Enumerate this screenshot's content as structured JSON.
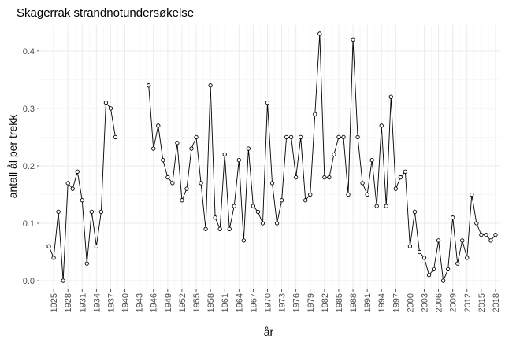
{
  "chart_data": {
    "type": "line",
    "title": "Skagerrak strandnotundersøkelse",
    "xlabel": "år",
    "ylabel": "antall ål per trekk",
    "xlim": [
      1922,
      2019
    ],
    "ylim": [
      -0.015,
      0.445
    ],
    "y_ticks": [
      0.0,
      0.1,
      0.2,
      0.3,
      0.4
    ],
    "y_tick_labels": [
      "0.0",
      "0.1",
      "0.2",
      "0.3",
      "0.4"
    ],
    "x_ticks": [
      1925,
      1928,
      1931,
      1934,
      1937,
      1940,
      1943,
      1946,
      1949,
      1952,
      1955,
      1958,
      1961,
      1964,
      1967,
      1970,
      1973,
      1976,
      1979,
      1982,
      1985,
      1988,
      1991,
      1994,
      1997,
      2000,
      2003,
      2006,
      2009,
      2012,
      2015,
      2018
    ],
    "grid": true,
    "legend": "none",
    "colors": {
      "line": "#000000",
      "grid_major": "#ebebeb",
      "grid_minor": "#f4f4f4",
      "tick_text": "#4d4d4d"
    },
    "series": [
      {
        "x": [
          1924,
          1925,
          1926,
          1927,
          1928,
          1929,
          1930,
          1931,
          1932,
          1933,
          1934,
          1935,
          1936,
          1937,
          1938
        ],
        "y": [
          0.06,
          0.04,
          0.12,
          0.0,
          0.17,
          0.16,
          0.19,
          0.14,
          0.03,
          0.12,
          0.06,
          0.12,
          0.31,
          0.3,
          0.25
        ]
      },
      {
        "x": [
          1945,
          1946,
          1947,
          1948,
          1949,
          1950,
          1951,
          1952,
          1953,
          1954,
          1955,
          1956,
          1957,
          1958,
          1959,
          1960,
          1961,
          1962,
          1963,
          1964,
          1965,
          1966,
          1967,
          1968,
          1969,
          1970,
          1971,
          1972,
          1973,
          1974,
          1975,
          1976,
          1977,
          1978,
          1979,
          1980,
          1981,
          1982,
          1983,
          1984,
          1985,
          1986,
          1987,
          1988,
          1989,
          1990,
          1991,
          1992,
          1993,
          1994,
          1995,
          1996,
          1997,
          1998,
          1999,
          2000,
          2001,
          2002,
          2003,
          2004,
          2005,
          2006,
          2007,
          2008,
          2009,
          2010,
          2011,
          2012,
          2013,
          2014,
          2015,
          2016,
          2017,
          2018
        ],
        "y": [
          0.34,
          0.23,
          0.27,
          0.21,
          0.18,
          0.17,
          0.24,
          0.14,
          0.16,
          0.23,
          0.25,
          0.17,
          0.09,
          0.34,
          0.11,
          0.09,
          0.22,
          0.09,
          0.13,
          0.21,
          0.07,
          0.23,
          0.13,
          0.12,
          0.1,
          0.31,
          0.17,
          0.1,
          0.14,
          0.25,
          0.25,
          0.18,
          0.25,
          0.14,
          0.15,
          0.29,
          0.43,
          0.18,
          0.18,
          0.22,
          0.25,
          0.25,
          0.15,
          0.42,
          0.25,
          0.17,
          0.15,
          0.21,
          0.13,
          0.27,
          0.13,
          0.32,
          0.16,
          0.18,
          0.19,
          0.06,
          0.12,
          0.05,
          0.04,
          0.01,
          0.02,
          0.07,
          0.0,
          0.02,
          0.11,
          0.03,
          0.07,
          0.04,
          0.15,
          0.1,
          0.08,
          0.08,
          0.07,
          0.08
        ]
      }
    ]
  }
}
